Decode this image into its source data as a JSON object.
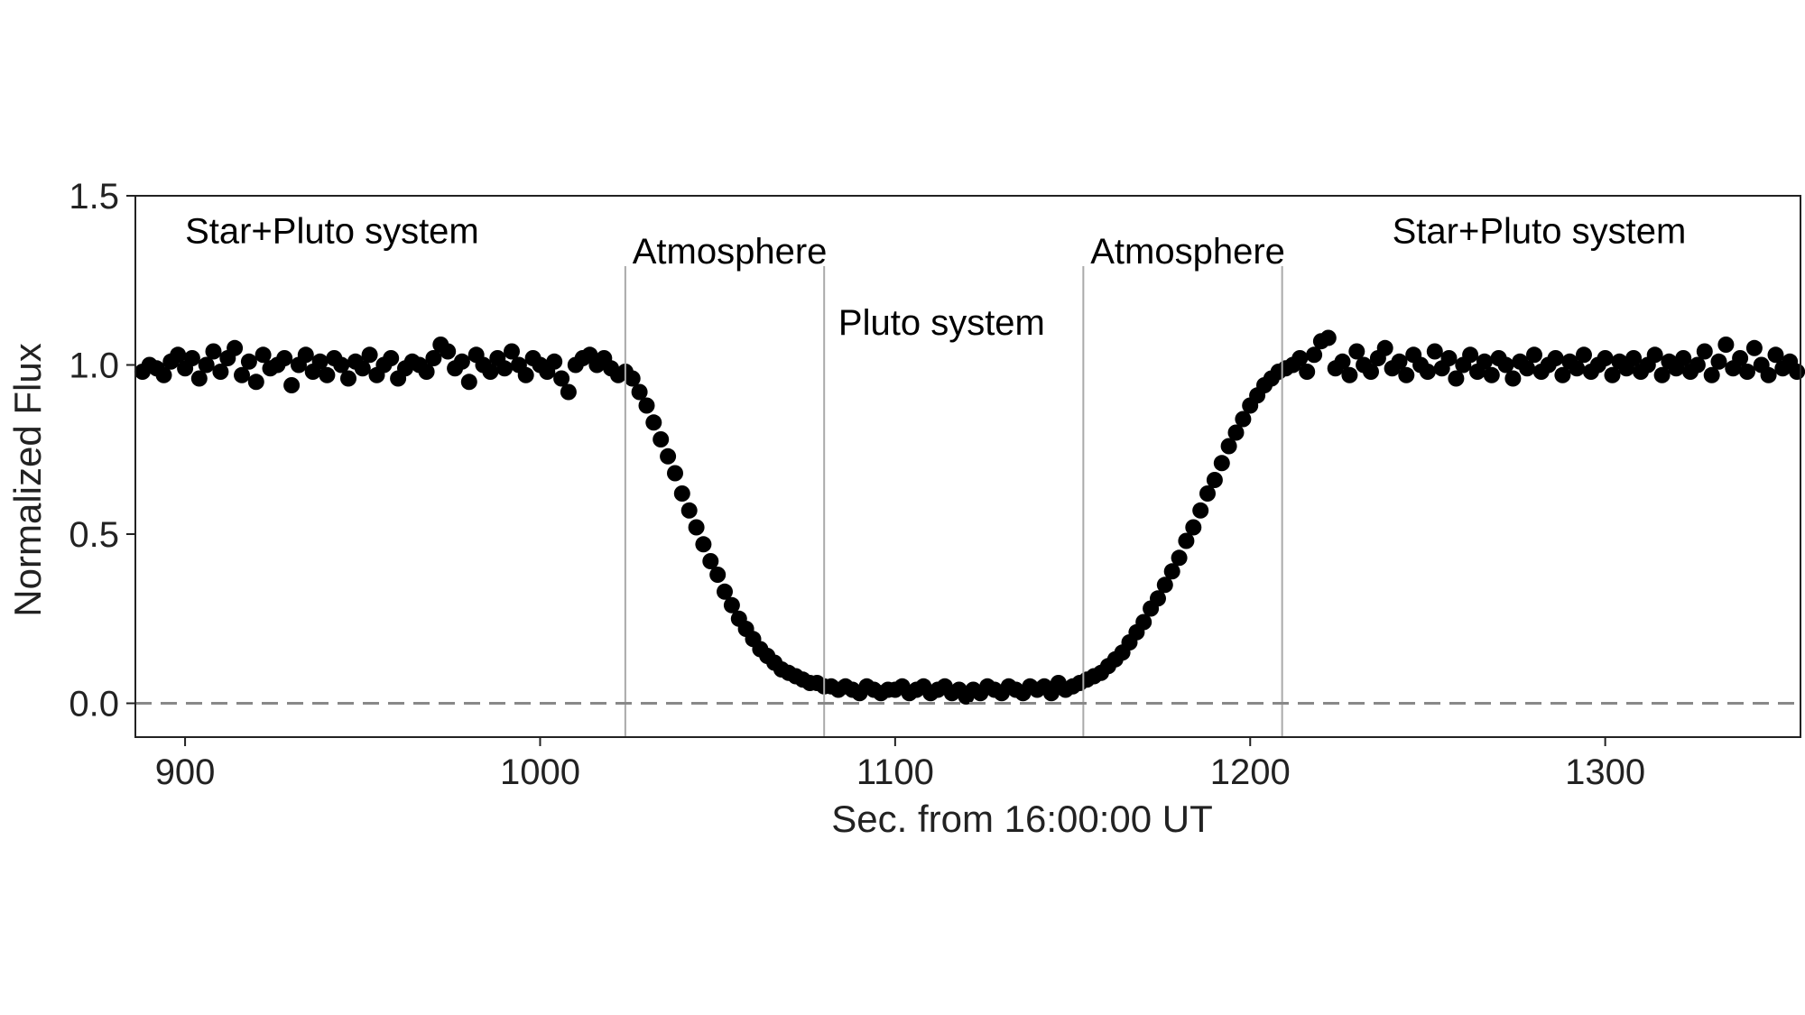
{
  "chart_data": {
    "type": "scatter",
    "title": "",
    "xlabel": "Sec. from 16:00:00 UT",
    "ylabel": "Normalized Flux",
    "xlim": [
      886,
      1355
    ],
    "ylim": [
      -0.1,
      1.5
    ],
    "xticks": [
      900,
      1000,
      1100,
      1200,
      1300
    ],
    "yticks": [
      0.0,
      0.5,
      1.0,
      1.5
    ],
    "xtick_labels": [
      "900",
      "1000",
      "1100",
      "1200",
      "1300"
    ],
    "ytick_labels": [
      "0.0",
      "0.5",
      "1.0",
      "1.5"
    ],
    "grid": false,
    "reference_line": {
      "y": 0.0,
      "style": "dashed",
      "color": "#888888"
    },
    "marker_color": "#000000",
    "boundary_lines": {
      "x": [
        1024,
        1080,
        1153,
        1209
      ],
      "color": "#aaaaaa"
    },
    "annotations": [
      {
        "text": "Star+Pluto system",
        "x": 900,
        "y": 1.36
      },
      {
        "text": "Atmosphere",
        "x": 1026,
        "y": 1.3
      },
      {
        "text": "Pluto system",
        "x": 1084,
        "y": 1.09
      },
      {
        "text": "Atmosphere",
        "x": 1155,
        "y": 1.3
      },
      {
        "text": "Star+Pluto system",
        "x": 1240,
        "y": 1.36
      }
    ],
    "series": [
      {
        "points": [
          [
            888,
            0.98
          ],
          [
            890,
            1.0
          ],
          [
            892,
            0.99
          ],
          [
            894,
            0.97
          ],
          [
            896,
            1.01
          ],
          [
            898,
            1.03
          ],
          [
            900,
            0.99
          ],
          [
            902,
            1.02
          ],
          [
            904,
            0.96
          ],
          [
            906,
            1.0
          ],
          [
            908,
            1.04
          ],
          [
            910,
            0.98
          ],
          [
            912,
            1.02
          ],
          [
            914,
            1.05
          ],
          [
            916,
            0.97
          ],
          [
            918,
            1.01
          ],
          [
            920,
            0.95
          ],
          [
            922,
            1.03
          ],
          [
            924,
            0.99
          ],
          [
            926,
            1.0
          ],
          [
            928,
            1.02
          ],
          [
            930,
            0.94
          ],
          [
            932,
            1.0
          ],
          [
            934,
            1.03
          ],
          [
            936,
            0.98
          ],
          [
            938,
            1.01
          ],
          [
            940,
            0.97
          ],
          [
            942,
            1.02
          ],
          [
            944,
            1.0
          ],
          [
            946,
            0.96
          ],
          [
            948,
            1.01
          ],
          [
            950,
            0.99
          ],
          [
            952,
            1.03
          ],
          [
            954,
            0.97
          ],
          [
            956,
            1.0
          ],
          [
            958,
            1.02
          ],
          [
            960,
            0.96
          ],
          [
            962,
            0.99
          ],
          [
            964,
            1.01
          ],
          [
            966,
            1.0
          ],
          [
            968,
            0.98
          ],
          [
            970,
            1.02
          ],
          [
            972,
            1.06
          ],
          [
            974,
            1.04
          ],
          [
            976,
            0.99
          ],
          [
            978,
            1.01
          ],
          [
            980,
            0.95
          ],
          [
            982,
            1.03
          ],
          [
            984,
            1.0
          ],
          [
            986,
            0.98
          ],
          [
            988,
            1.02
          ],
          [
            990,
            0.99
          ],
          [
            992,
            1.04
          ],
          [
            994,
            1.0
          ],
          [
            996,
            0.97
          ],
          [
            998,
            1.02
          ],
          [
            1000,
            1.0
          ],
          [
            1002,
            0.98
          ],
          [
            1004,
            1.01
          ],
          [
            1006,
            0.96
          ],
          [
            1008,
            0.92
          ],
          [
            1010,
            1.0
          ],
          [
            1012,
            1.02
          ],
          [
            1014,
            1.03
          ],
          [
            1016,
            1.0
          ],
          [
            1018,
            1.02
          ],
          [
            1020,
            0.99
          ],
          [
            1022,
            0.97
          ],
          [
            1024,
            0.98
          ],
          [
            1026,
            0.96
          ],
          [
            1028,
            0.92
          ],
          [
            1030,
            0.88
          ],
          [
            1032,
            0.83
          ],
          [
            1034,
            0.78
          ],
          [
            1036,
            0.73
          ],
          [
            1038,
            0.68
          ],
          [
            1040,
            0.62
          ],
          [
            1042,
            0.57
          ],
          [
            1044,
            0.52
          ],
          [
            1046,
            0.47
          ],
          [
            1048,
            0.42
          ],
          [
            1050,
            0.38
          ],
          [
            1052,
            0.33
          ],
          [
            1054,
            0.29
          ],
          [
            1056,
            0.25
          ],
          [
            1058,
            0.22
          ],
          [
            1060,
            0.19
          ],
          [
            1062,
            0.16
          ],
          [
            1064,
            0.14
          ],
          [
            1066,
            0.12
          ],
          [
            1068,
            0.1
          ],
          [
            1070,
            0.09
          ],
          [
            1072,
            0.08
          ],
          [
            1074,
            0.07
          ],
          [
            1076,
            0.06
          ],
          [
            1078,
            0.06
          ],
          [
            1080,
            0.05
          ],
          [
            1082,
            0.05
          ],
          [
            1084,
            0.04
          ],
          [
            1086,
            0.05
          ],
          [
            1088,
            0.04
          ],
          [
            1090,
            0.03
          ],
          [
            1092,
            0.05
          ],
          [
            1094,
            0.04
          ],
          [
            1096,
            0.03
          ],
          [
            1098,
            0.04
          ],
          [
            1100,
            0.04
          ],
          [
            1102,
            0.05
          ],
          [
            1104,
            0.03
          ],
          [
            1106,
            0.04
          ],
          [
            1108,
            0.05
          ],
          [
            1110,
            0.03
          ],
          [
            1112,
            0.04
          ],
          [
            1114,
            0.05
          ],
          [
            1116,
            0.03
          ],
          [
            1118,
            0.04
          ],
          [
            1120,
            0.02
          ],
          [
            1122,
            0.04
          ],
          [
            1124,
            0.03
          ],
          [
            1126,
            0.05
          ],
          [
            1128,
            0.04
          ],
          [
            1130,
            0.03
          ],
          [
            1132,
            0.05
          ],
          [
            1134,
            0.04
          ],
          [
            1136,
            0.03
          ],
          [
            1138,
            0.05
          ],
          [
            1140,
            0.04
          ],
          [
            1142,
            0.05
          ],
          [
            1144,
            0.03
          ],
          [
            1146,
            0.06
          ],
          [
            1148,
            0.04
          ],
          [
            1150,
            0.05
          ],
          [
            1152,
            0.06
          ],
          [
            1154,
            0.07
          ],
          [
            1156,
            0.08
          ],
          [
            1158,
            0.09
          ],
          [
            1160,
            0.11
          ],
          [
            1162,
            0.13
          ],
          [
            1164,
            0.15
          ],
          [
            1166,
            0.18
          ],
          [
            1168,
            0.21
          ],
          [
            1170,
            0.24
          ],
          [
            1172,
            0.28
          ],
          [
            1174,
            0.31
          ],
          [
            1176,
            0.35
          ],
          [
            1178,
            0.39
          ],
          [
            1180,
            0.43
          ],
          [
            1182,
            0.48
          ],
          [
            1184,
            0.52
          ],
          [
            1186,
            0.57
          ],
          [
            1188,
            0.62
          ],
          [
            1190,
            0.66
          ],
          [
            1192,
            0.71
          ],
          [
            1194,
            0.76
          ],
          [
            1196,
            0.8
          ],
          [
            1198,
            0.84
          ],
          [
            1200,
            0.88
          ],
          [
            1202,
            0.91
          ],
          [
            1204,
            0.94
          ],
          [
            1206,
            0.96
          ],
          [
            1208,
            0.98
          ],
          [
            1210,
            0.99
          ],
          [
            1212,
            1.0
          ],
          [
            1214,
            1.02
          ],
          [
            1216,
            0.98
          ],
          [
            1218,
            1.03
          ],
          [
            1220,
            1.07
          ],
          [
            1222,
            1.08
          ],
          [
            1224,
            0.99
          ],
          [
            1226,
            1.01
          ],
          [
            1228,
            0.97
          ],
          [
            1230,
            1.04
          ],
          [
            1232,
            1.0
          ],
          [
            1234,
            0.98
          ],
          [
            1236,
            1.02
          ],
          [
            1238,
            1.05
          ],
          [
            1240,
            0.99
          ],
          [
            1242,
            1.01
          ],
          [
            1244,
            0.97
          ],
          [
            1246,
            1.03
          ],
          [
            1248,
            1.0
          ],
          [
            1250,
            0.98
          ],
          [
            1252,
            1.04
          ],
          [
            1254,
            0.99
          ],
          [
            1256,
            1.02
          ],
          [
            1258,
            0.96
          ],
          [
            1260,
            1.0
          ],
          [
            1262,
            1.03
          ],
          [
            1264,
            0.98
          ],
          [
            1266,
            1.01
          ],
          [
            1268,
            0.97
          ],
          [
            1270,
            1.02
          ],
          [
            1272,
            1.0
          ],
          [
            1274,
            0.96
          ],
          [
            1276,
            1.01
          ],
          [
            1278,
            0.99
          ],
          [
            1280,
            1.03
          ],
          [
            1282,
            0.98
          ],
          [
            1284,
            1.0
          ],
          [
            1286,
            1.02
          ],
          [
            1288,
            0.97
          ],
          [
            1290,
            1.01
          ],
          [
            1292,
            0.99
          ],
          [
            1294,
            1.03
          ],
          [
            1296,
            0.98
          ],
          [
            1298,
            1.0
          ],
          [
            1300,
            1.02
          ],
          [
            1302,
            0.97
          ],
          [
            1304,
            1.01
          ],
          [
            1306,
            0.99
          ],
          [
            1308,
            1.02
          ],
          [
            1310,
            0.98
          ],
          [
            1312,
            1.0
          ],
          [
            1314,
            1.03
          ],
          [
            1316,
            0.97
          ],
          [
            1318,
            1.01
          ],
          [
            1320,
            0.99
          ],
          [
            1322,
            1.02
          ],
          [
            1324,
            0.98
          ],
          [
            1326,
            1.0
          ],
          [
            1328,
            1.04
          ],
          [
            1330,
            0.97
          ],
          [
            1332,
            1.01
          ],
          [
            1334,
            1.06
          ],
          [
            1336,
            0.99
          ],
          [
            1338,
            1.02
          ],
          [
            1340,
            0.98
          ],
          [
            1342,
            1.05
          ],
          [
            1344,
            1.0
          ],
          [
            1346,
            0.97
          ],
          [
            1348,
            1.03
          ],
          [
            1350,
            0.99
          ],
          [
            1352,
            1.01
          ],
          [
            1354,
            0.98
          ]
        ]
      }
    ]
  }
}
